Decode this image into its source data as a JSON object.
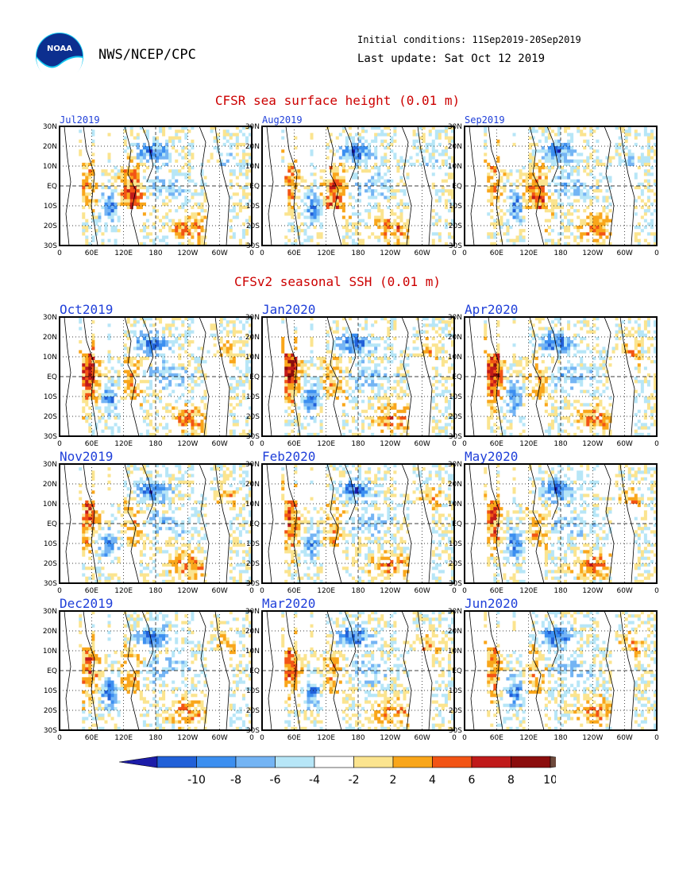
{
  "header": {
    "org": "NWS/NCEP/CPC",
    "initial_conditions": "Initial conditions: 11Sep2019-20Sep2019",
    "last_update": "Last update: Sat Oct 12 2019",
    "logo_text": "NOAA"
  },
  "chart_data": [
    {
      "type": "heatmap",
      "title": "CFSR sea surface height (0.01 m)",
      "panels": [
        "Jul2019",
        "Aug2019",
        "Sep2019"
      ],
      "x_ticks": [
        "0",
        "60E",
        "120E",
        "180",
        "120W",
        "60W",
        "0"
      ],
      "y_ticks": [
        "30N",
        "20N",
        "10N",
        "EQ",
        "10S",
        "20S",
        "30S"
      ],
      "ylim": [
        "30S",
        "30N"
      ],
      "xlim": [
        "0",
        "0"
      ]
    },
    {
      "type": "heatmap",
      "title": "CFSv2 seasonal SSH (0.01 m)",
      "panels": [
        "Oct2019",
        "Jan2020",
        "Apr2020",
        "Nov2019",
        "Feb2020",
        "May2020",
        "Dec2019",
        "Mar2020",
        "Jun2020"
      ],
      "x_ticks": [
        "0",
        "60E",
        "120E",
        "180",
        "120W",
        "60W",
        "0"
      ],
      "y_ticks": [
        "30N",
        "20N",
        "10N",
        "EQ",
        "10S",
        "20S",
        "30S"
      ],
      "ylim": [
        "30S",
        "30N"
      ],
      "xlim": [
        "0",
        "0"
      ]
    }
  ],
  "colorbar": {
    "labels": [
      "-10",
      "-8",
      "-6",
      "-4",
      "-2",
      "2",
      "4",
      "6",
      "8",
      "10"
    ],
    "colors": [
      "#1c1ca8",
      "#2160d8",
      "#3c8ff0",
      "#74b4f4",
      "#b7e6f7",
      "#ffffff",
      "#fbe48f",
      "#f9a61b",
      "#f25415",
      "#c01a1a",
      "#8b0d0d",
      "#6e4a3c"
    ]
  }
}
